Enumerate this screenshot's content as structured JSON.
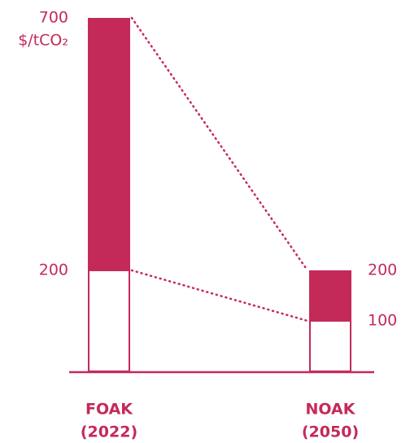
{
  "chart_data": {
    "type": "range_bar",
    "categories": [
      "FOAK",
      "NOAK"
    ],
    "category_years": [
      "(2022)",
      "(2050)"
    ],
    "low": [
      200,
      100
    ],
    "high": [
      700,
      200
    ],
    "unit": "$/tCO₂",
    "ylim": [
      0,
      700
    ],
    "color": "#c42a58"
  }
}
